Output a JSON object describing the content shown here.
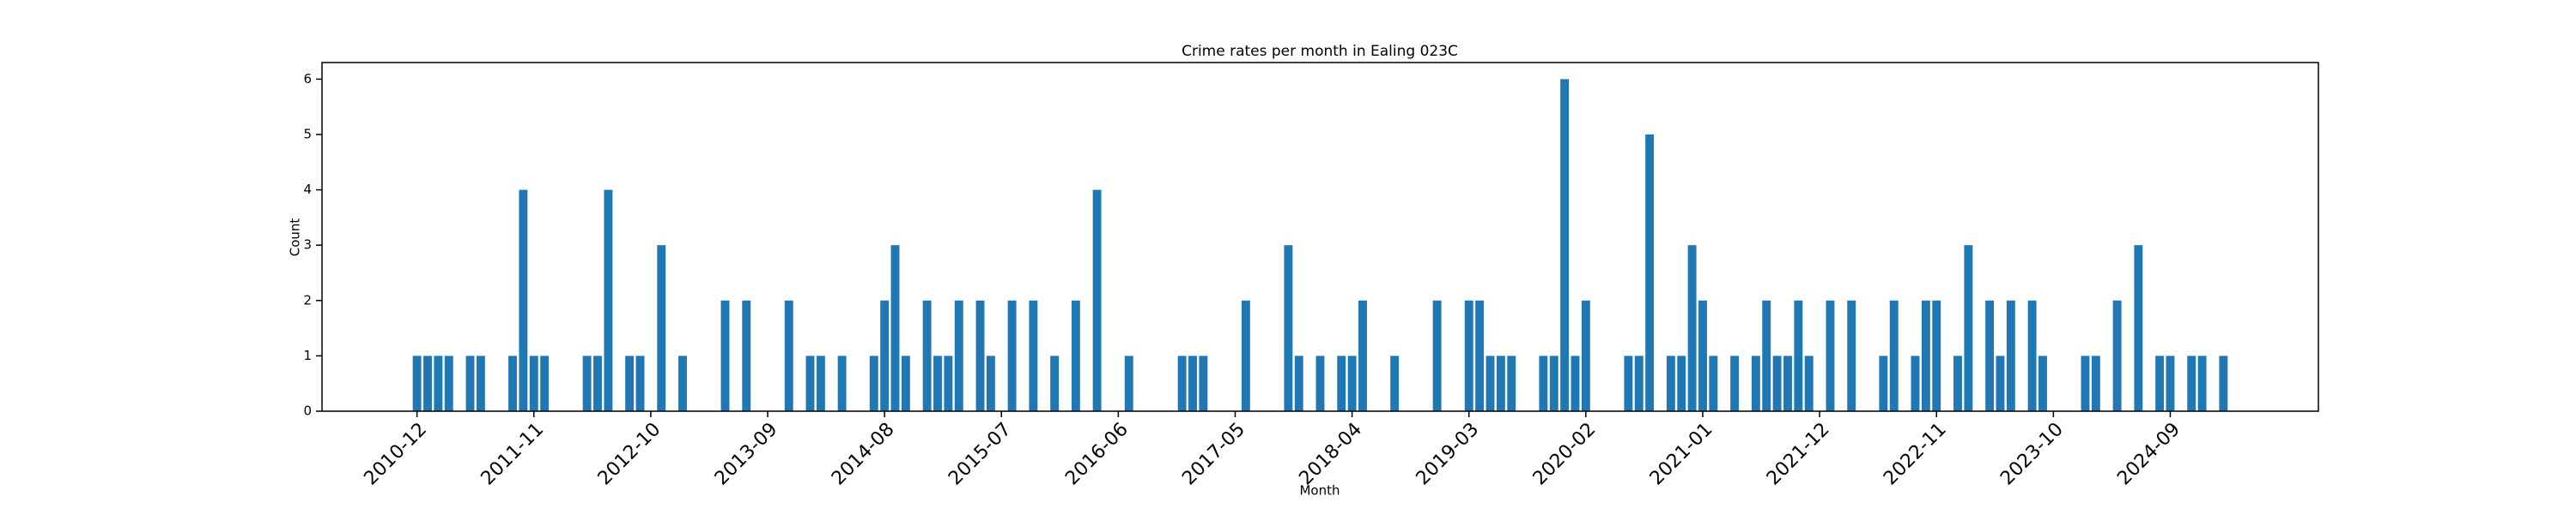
{
  "chart_data": {
    "type": "bar",
    "title": "Crime rates per month in Ealing 023C",
    "x_label": "Month",
    "y_label": "Count",
    "color": "#1f77b4",
    "categories": [
      "2010-12",
      null,
      null,
      null,
      null,
      null,
      null,
      null,
      null,
      null,
      null,
      "2011-11",
      null,
      null,
      null,
      null,
      null,
      null,
      null,
      null,
      null,
      null,
      "2012-10",
      null,
      null,
      null,
      null,
      null,
      null,
      null,
      null,
      null,
      null,
      "2013-09",
      null,
      null,
      null,
      null,
      null,
      null,
      null,
      null,
      null,
      null,
      "2014-08",
      null,
      null,
      null,
      null,
      null,
      null,
      null,
      null,
      null,
      null,
      "2015-07",
      null,
      null,
      null,
      null,
      null,
      null,
      null,
      null,
      null,
      null,
      "2016-06",
      null,
      null,
      null,
      null,
      null,
      null,
      null,
      null,
      null,
      null,
      "2017-05",
      null,
      null,
      null,
      null,
      null,
      null,
      null,
      null,
      null,
      null,
      "2018-04",
      null,
      null,
      null,
      null,
      null,
      null,
      null,
      null,
      null,
      null,
      "2019-03",
      null,
      null,
      null,
      null,
      null,
      null,
      null,
      null,
      null,
      null,
      "2020-02",
      null,
      null,
      null,
      null,
      null,
      null,
      null,
      null,
      null,
      null,
      "2021-01",
      null,
      null,
      null,
      null,
      null,
      null,
      null,
      null,
      null,
      null,
      "2021-12",
      null,
      null,
      null,
      null,
      null,
      null,
      null,
      null,
      null,
      null,
      "2022-11",
      null,
      null,
      null,
      null,
      null,
      null,
      null,
      null,
      null,
      null,
      "2023-10",
      null,
      null,
      null,
      null,
      null,
      null,
      null,
      null,
      null,
      null,
      "2024-09",
      null,
      null,
      null,
      null,
      null
    ],
    "values": [
      1,
      1,
      1,
      1,
      0,
      1,
      1,
      0,
      0,
      1,
      4,
      1,
      1,
      0,
      0,
      0,
      1,
      1,
      4,
      0,
      1,
      1,
      0,
      3,
      0,
      1,
      0,
      0,
      0,
      2,
      0,
      2,
      0,
      0,
      0,
      2,
      0,
      1,
      1,
      0,
      1,
      0,
      0,
      1,
      2,
      3,
      1,
      0,
      2,
      1,
      1,
      2,
      0,
      2,
      1,
      0,
      2,
      0,
      2,
      0,
      1,
      0,
      2,
      0,
      4,
      0,
      0,
      1,
      0,
      0,
      0,
      0,
      1,
      1,
      1,
      0,
      0,
      0,
      2,
      0,
      0,
      0,
      3,
      1,
      0,
      1,
      0,
      1,
      1,
      2,
      0,
      0,
      1,
      0,
      0,
      0,
      2,
      0,
      0,
      2,
      2,
      1,
      1,
      1,
      0,
      0,
      1,
      1,
      6,
      1,
      2,
      0,
      0,
      0,
      1,
      1,
      5,
      0,
      1,
      1,
      3,
      2,
      1,
      0,
      1,
      0,
      1,
      2,
      1,
      1,
      2,
      1,
      0,
      2,
      0,
      2,
      0,
      0,
      1,
      2,
      0,
      1,
      2,
      2,
      0,
      1,
      3,
      0,
      2,
      1,
      2,
      0,
      2,
      1,
      0,
      0,
      0,
      1,
      1,
      0,
      2,
      0,
      3,
      0,
      1,
      1,
      0,
      1,
      1,
      0,
      1
    ],
    "ylim": [
      0,
      6.3
    ],
    "yticks": [
      0,
      1,
      2,
      3,
      4,
      5,
      6
    ],
    "grid": false
  }
}
